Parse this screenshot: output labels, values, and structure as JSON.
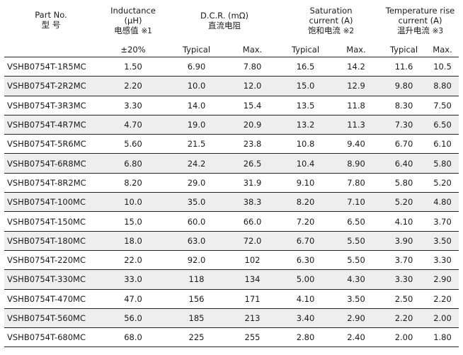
{
  "headers": {
    "part_no": "Part No.",
    "part_no_cn": "型  号",
    "inductance": "Inductance",
    "inductance_unit": "(μH)",
    "inductance_cn": "电感值",
    "inductance_note": "※1",
    "inductance_tol": "±20%",
    "dcr": "D.C.R. (mΩ)",
    "dcr_cn": "直流电阻",
    "saturation": "Saturation",
    "saturation_unit": "current (A)",
    "saturation_cn": "饱和电流",
    "saturation_note": "※2",
    "temp_rise": "Temperature rise",
    "temp_rise_unit": "current (A)",
    "temp_rise_cn": "温升电流",
    "temp_rise_note": "※3",
    "typical": "Typical",
    "max": "Max."
  },
  "rows": [
    {
      "part": "VSHB0754T-1R5MC",
      "l": "1.50",
      "dcr_typ": "6.90",
      "dcr_max": "7.80",
      "sat_typ": "16.5",
      "sat_max": "14.2",
      "tr_typ": "11.6",
      "tr_max": "10.5"
    },
    {
      "part": "VSHB0754T-2R2MC",
      "l": "2.20",
      "dcr_typ": "10.0",
      "dcr_max": "12.0",
      "sat_typ": "15.0",
      "sat_max": "12.9",
      "tr_typ": "9.80",
      "tr_max": "8.80"
    },
    {
      "part": "VSHB0754T-3R3MC",
      "l": "3.30",
      "dcr_typ": "14.0",
      "dcr_max": "15.4",
      "sat_typ": "13.5",
      "sat_max": "11.8",
      "tr_typ": "8.30",
      "tr_max": "7.50"
    },
    {
      "part": "VSHB0754T-4R7MC",
      "l": "4.70",
      "dcr_typ": "19.0",
      "dcr_max": "20.9",
      "sat_typ": "13.2",
      "sat_max": "11.3",
      "tr_typ": "7.30",
      "tr_max": "6.50"
    },
    {
      "part": "VSHB0754T-5R6MC",
      "l": "5.60",
      "dcr_typ": "21.5",
      "dcr_max": "23.8",
      "sat_typ": "10.8",
      "sat_max": "9.40",
      "tr_typ": "6.70",
      "tr_max": "6.10"
    },
    {
      "part": "VSHB0754T-6R8MC",
      "l": "6.80",
      "dcr_typ": "24.2",
      "dcr_max": "26.5",
      "sat_typ": "10.4",
      "sat_max": "8.90",
      "tr_typ": "6.40",
      "tr_max": "5.80"
    },
    {
      "part": "VSHB0754T-8R2MC",
      "l": "8.20",
      "dcr_typ": "29.0",
      "dcr_max": "31.9",
      "sat_typ": "9.10",
      "sat_max": "7.80",
      "tr_typ": "5.80",
      "tr_max": "5.20"
    },
    {
      "part": "VSHB0754T-100MC",
      "l": "10.0",
      "dcr_typ": "35.0",
      "dcr_max": "38.3",
      "sat_typ": "8.20",
      "sat_max": "7.10",
      "tr_typ": "5.20",
      "tr_max": "4.80"
    },
    {
      "part": "VSHB0754T-150MC",
      "l": "15.0",
      "dcr_typ": "60.0",
      "dcr_max": "66.0",
      "sat_typ": "7.20",
      "sat_max": "6.50",
      "tr_typ": "4.10",
      "tr_max": "3.70"
    },
    {
      "part": "VSHB0754T-180MC",
      "l": "18.0",
      "dcr_typ": "63.0",
      "dcr_max": "72.0",
      "sat_typ": "6.70",
      "sat_max": "5.50",
      "tr_typ": "3.90",
      "tr_max": "3.50"
    },
    {
      "part": "VSHB0754T-220MC",
      "l": "22.0",
      "dcr_typ": "92.0",
      "dcr_max": "102",
      "sat_typ": "6.30",
      "sat_max": "5.50",
      "tr_typ": "3.70",
      "tr_max": "3.30"
    },
    {
      "part": "VSHB0754T-330MC",
      "l": "33.0",
      "dcr_typ": "118",
      "dcr_max": "134",
      "sat_typ": "5.00",
      "sat_max": "4.30",
      "tr_typ": "3.30",
      "tr_max": "2.90"
    },
    {
      "part": "VSHB0754T-470MC",
      "l": "47.0",
      "dcr_typ": "156",
      "dcr_max": "171",
      "sat_typ": "4.10",
      "sat_max": "3.50",
      "tr_typ": "2.50",
      "tr_max": "2.20"
    },
    {
      "part": "VSHB0754T-560MC",
      "l": "56.0",
      "dcr_typ": "185",
      "dcr_max": "213",
      "sat_typ": "3.40",
      "sat_max": "2.90",
      "tr_typ": "2.20",
      "tr_max": "2.00"
    },
    {
      "part": "VSHB0754T-680MC",
      "l": "68.0",
      "dcr_typ": "225",
      "dcr_max": "255",
      "sat_typ": "2.80",
      "sat_max": "2.40",
      "tr_typ": "2.00",
      "tr_max": "1.80"
    }
  ]
}
